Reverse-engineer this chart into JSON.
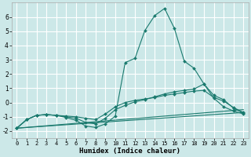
{
  "xlabel": "Humidex (Indice chaleur)",
  "bg_color": "#cce8e8",
  "grid_color": "#ffffff",
  "line_color": "#1a7a6e",
  "marker_color": "#1a7a6e",
  "xlim": [
    -0.5,
    23.5
  ],
  "ylim": [
    -2.5,
    7.0
  ],
  "xticks": [
    0,
    1,
    2,
    3,
    4,
    5,
    6,
    7,
    8,
    9,
    10,
    11,
    12,
    13,
    14,
    15,
    16,
    17,
    18,
    19,
    20,
    21,
    22,
    23
  ],
  "yticks": [
    -2,
    -1,
    0,
    1,
    2,
    3,
    4,
    5,
    6
  ],
  "curves": [
    {
      "x": [
        0,
        1,
        2,
        3,
        4,
        5,
        6,
        7,
        8,
        9,
        10,
        11,
        12,
        13,
        14,
        15,
        16,
        17,
        18,
        19,
        20,
        21,
        22,
        23
      ],
      "y": [
        -1.8,
        -1.2,
        -0.9,
        -0.85,
        -0.9,
        -1.05,
        -1.25,
        -1.65,
        -1.75,
        -1.5,
        -0.95,
        2.8,
        3.1,
        5.05,
        6.1,
        6.6,
        5.2,
        2.9,
        2.4,
        1.3,
        0.3,
        -0.3,
        -0.6,
        -0.8
      ],
      "has_markers": true
    },
    {
      "x": [
        0,
        23
      ],
      "y": [
        -1.8,
        -0.7
      ],
      "has_markers": false
    },
    {
      "x": [
        0,
        23
      ],
      "y": [
        -1.8,
        -0.5
      ],
      "has_markers": false
    },
    {
      "x": [
        0,
        1,
        2,
        3,
        4,
        5,
        6,
        7,
        8,
        9,
        10,
        11,
        12,
        13,
        14,
        15,
        16,
        17,
        18,
        19,
        20,
        21,
        22,
        23
      ],
      "y": [
        -1.8,
        -1.2,
        -0.9,
        -0.85,
        -0.9,
        -0.95,
        -1.0,
        -1.1,
        -1.2,
        -0.8,
        -0.3,
        0.0,
        0.15,
        0.25,
        0.35,
        0.5,
        0.6,
        0.7,
        0.8,
        0.85,
        0.35,
        0.1,
        -0.35,
        -0.7
      ],
      "has_markers": true
    },
    {
      "x": [
        0,
        1,
        2,
        3,
        4,
        5,
        6,
        7,
        8,
        9,
        10,
        11,
        12,
        13,
        14,
        15,
        16,
        17,
        18,
        19,
        20,
        21,
        22,
        23
      ],
      "y": [
        -1.8,
        -1.2,
        -0.9,
        -0.85,
        -0.9,
        -1.0,
        -1.1,
        -1.4,
        -1.5,
        -1.1,
        -0.5,
        -0.2,
        0.05,
        0.2,
        0.4,
        0.6,
        0.75,
        0.85,
        0.95,
        1.3,
        0.5,
        0.2,
        -0.4,
        -0.75
      ],
      "has_markers": true
    }
  ]
}
